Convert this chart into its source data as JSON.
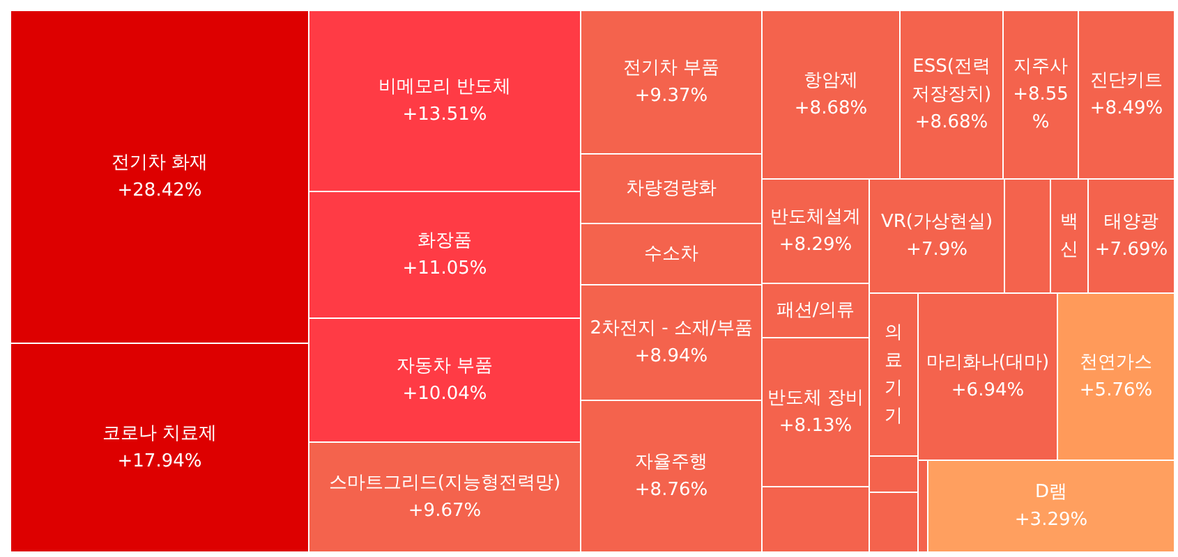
{
  "chart_data": {
    "type": "other",
    "categories": [
      "전기차 화재",
      "코로나 치료제",
      "비메모리 반도체",
      "화장품",
      "자동차 부품",
      "스마트그리드(지능형전력망)",
      "전기차 부품",
      "차량경량화",
      "수소차",
      "2차전지 - 소재/부품",
      "자율주행",
      "항암제",
      "ESS(전력 저장장치)",
      "지주사",
      "진단키트",
      "반도체설계",
      "VR(가상현실)",
      "백신",
      "태양광",
      "패션/의류",
      "반도체 장비",
      "의료기기",
      "마리화나(대마)",
      "천연가스",
      "D램"
    ],
    "values": [
      28.42,
      17.94,
      13.51,
      11.05,
      10.04,
      9.67,
      9.37,
      null,
      null,
      8.94,
      8.76,
      8.68,
      8.68,
      8.55,
      8.49,
      8.29,
      7.9,
      null,
      7.69,
      null,
      8.13,
      null,
      6.94,
      5.76,
      3.29
    ],
    "value_labels": [
      "+28.42%",
      "+17.94%",
      "+13.51%",
      "+11.05%",
      "+10.04%",
      "+9.67%",
      "+9.37%",
      null,
      null,
      "+8.94%",
      "+8.76%",
      "+8.68%",
      "+8.68%",
      "+8.55%",
      "+8.49%",
      "+8.29%",
      "+7.9%",
      null,
      "+7.69%",
      null,
      "+8.13%",
      null,
      "+6.94%",
      "+5.76%",
      "+3.29%"
    ],
    "colors": [
      "#dd0000",
      "#dd0000",
      "#ff3b45",
      "#ff3b45",
      "#ff3b45",
      "#f4634d",
      "#f4634d",
      "#f4634d",
      "#f4634d",
      "#f4634d",
      "#f4634d",
      "#f4634d",
      "#f4634d",
      "#f4634d",
      "#f4634d",
      "#f4634d",
      "#f4634d",
      "#f4634d",
      "#f4634d",
      "#f4634d",
      "#f4634d",
      "#f4634d",
      "#f4634d",
      "#ff9a5a",
      "#ff9f5f"
    ]
  }
}
